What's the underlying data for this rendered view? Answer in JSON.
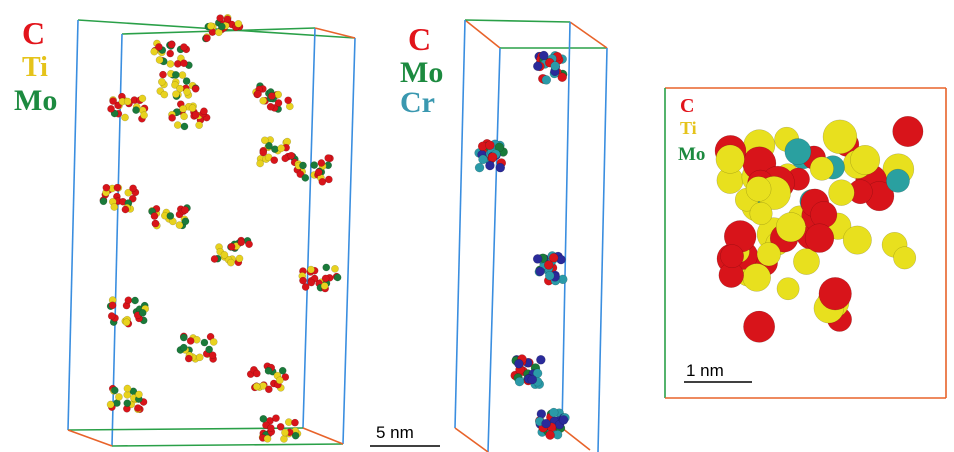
{
  "panels": [
    {
      "legend": [
        "C",
        "Ti",
        "Mo"
      ],
      "scale_bar": "5 nm"
    },
    {
      "legend": [
        "C",
        "Mo",
        "Cr"
      ]
    },
    {
      "legend": [
        "C",
        "Ti",
        "Mo"
      ],
      "scale_bar": "1 nm"
    }
  ]
}
